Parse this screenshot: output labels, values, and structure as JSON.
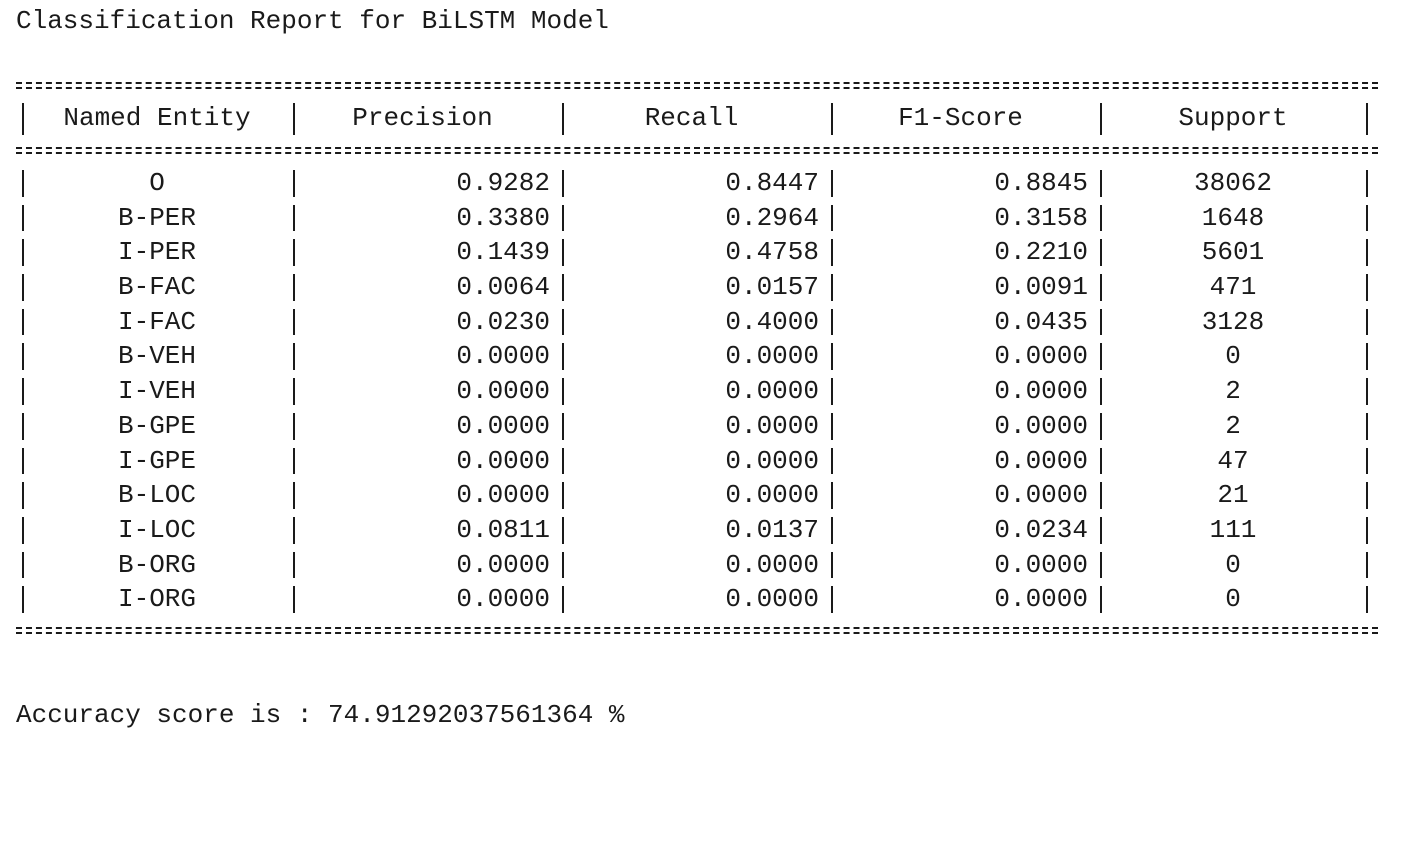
{
  "report_title": "Classification Report for BiLSTM Model",
  "table": {
    "headers": [
      "Named Entity",
      "Precision",
      "Recall",
      "F1-Score",
      "Support"
    ],
    "rows": [
      {
        "entity": "O",
        "precision": "0.9282",
        "recall": "0.8447",
        "f1": "0.8845",
        "support": "38062"
      },
      {
        "entity": "B-PER",
        "precision": "0.3380",
        "recall": "0.2964",
        "f1": "0.3158",
        "support": "1648"
      },
      {
        "entity": "I-PER",
        "precision": "0.1439",
        "recall": "0.4758",
        "f1": "0.2210",
        "support": "5601"
      },
      {
        "entity": "B-FAC",
        "precision": "0.0064",
        "recall": "0.0157",
        "f1": "0.0091",
        "support": "471"
      },
      {
        "entity": "I-FAC",
        "precision": "0.0230",
        "recall": "0.4000",
        "f1": "0.0435",
        "support": "3128"
      },
      {
        "entity": "B-VEH",
        "precision": "0.0000",
        "recall": "0.0000",
        "f1": "0.0000",
        "support": "0"
      },
      {
        "entity": "I-VEH",
        "precision": "0.0000",
        "recall": "0.0000",
        "f1": "0.0000",
        "support": "2"
      },
      {
        "entity": "B-GPE",
        "precision": "0.0000",
        "recall": "0.0000",
        "f1": "0.0000",
        "support": "2"
      },
      {
        "entity": "I-GPE",
        "precision": "0.0000",
        "recall": "0.0000",
        "f1": "0.0000",
        "support": "47"
      },
      {
        "entity": "B-LOC",
        "precision": "0.0000",
        "recall": "0.0000",
        "f1": "0.0000",
        "support": "21"
      },
      {
        "entity": "I-LOC",
        "precision": "0.0811",
        "recall": "0.0137",
        "f1": "0.0234",
        "support": "111"
      },
      {
        "entity": "B-ORG",
        "precision": "0.0000",
        "recall": "0.0000",
        "f1": "0.0000",
        "support": "0"
      },
      {
        "entity": "I-ORG",
        "precision": "0.0000",
        "recall": "0.0000",
        "f1": "0.0000",
        "support": "0"
      }
    ]
  },
  "accuracy_text": "Accuracy score is : 74.91292037561364 %"
}
